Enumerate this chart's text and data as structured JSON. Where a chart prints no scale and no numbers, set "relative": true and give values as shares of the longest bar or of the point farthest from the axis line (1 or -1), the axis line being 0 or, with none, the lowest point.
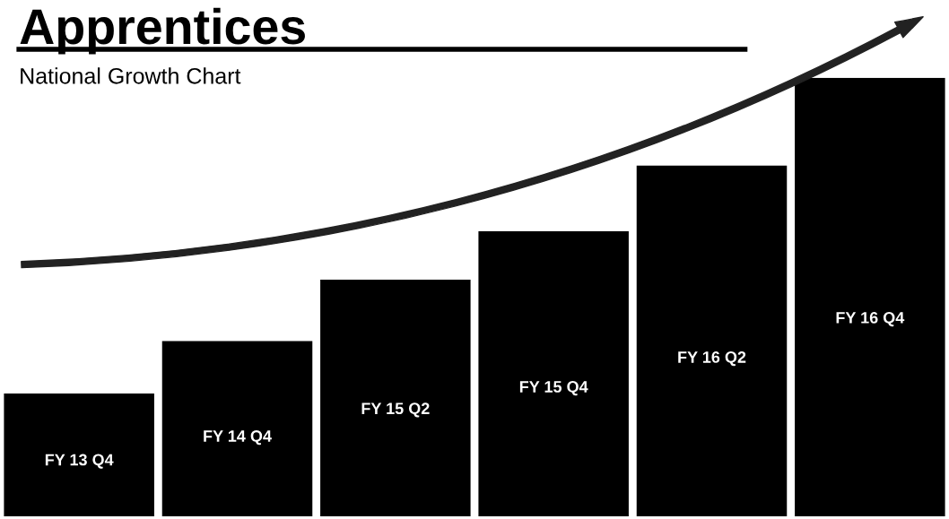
{
  "chart_data": {
    "type": "bar",
    "title": "Apprentices",
    "subtitle": "National Growth Chart",
    "categories": [
      "FY 13 Q4",
      "FY 14 Q4",
      "FY 15 Q2",
      "FY 15 Q4",
      "FY 16 Q2",
      "FY 16 Q4"
    ],
    "values": [
      0.28,
      0.4,
      0.54,
      0.65,
      0.8,
      1
    ],
    "color": "#000000",
    "relative": true
  }
}
